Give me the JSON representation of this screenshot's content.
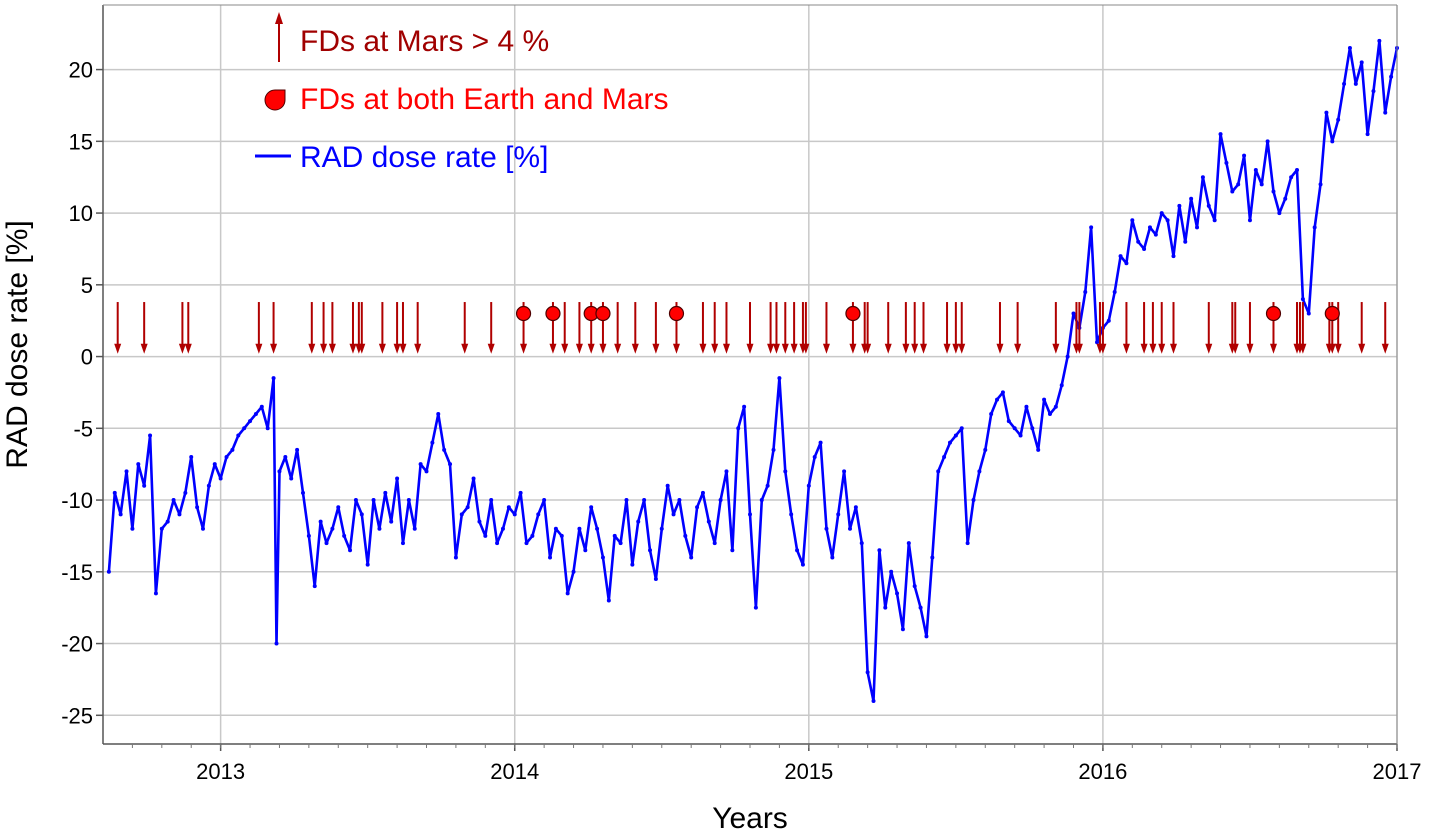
{
  "chart_data": {
    "type": "line",
    "title": "",
    "xlabel": "Years",
    "ylabel": "RAD dose rate [%]",
    "xlim": [
      2012.6,
      2017.0
    ],
    "ylim": [
      -27.0,
      24.5
    ],
    "x_ticks": [
      2013,
      2014,
      2015,
      2016,
      2017
    ],
    "x_tick_labels": [
      "2013",
      "2014",
      "2015",
      "2016",
      "2017"
    ],
    "y_ticks": [
      20,
      15,
      10,
      5,
      0,
      -5,
      -10,
      -15,
      -20,
      -25
    ],
    "y_tick_labels": [
      "20",
      "15",
      "10",
      "5",
      "0",
      "-5",
      "-10",
      "-15",
      "-20",
      "-25"
    ],
    "grid": true,
    "legend_position": "top-left",
    "legend": [
      {
        "label": "FDs at Mars > 4 %",
        "marker": "arrow",
        "color": "#b00000"
      },
      {
        "label": "FDs at both Earth and Mars",
        "marker": "circle",
        "color": "#ff0000"
      },
      {
        "label": "RAD dose rate [%]",
        "marker": "line",
        "color": "#0000ff"
      }
    ],
    "colors": {
      "dose": "#0000ff",
      "arrow": "#b00000",
      "text_arrow": "#a00000",
      "dot": "#ff0000",
      "grid": "#c8c8c8"
    },
    "series": [
      {
        "name": "RAD dose rate [%]",
        "x": [
          2012.62,
          2012.64,
          2012.66,
          2012.68,
          2012.7,
          2012.72,
          2012.74,
          2012.76,
          2012.78,
          2012.8,
          2012.82,
          2012.84,
          2012.86,
          2012.88,
          2012.9,
          2012.92,
          2012.94,
          2012.96,
          2012.98,
          2013.0,
          2013.02,
          2013.04,
          2013.06,
          2013.08,
          2013.1,
          2013.12,
          2013.14,
          2013.16,
          2013.18,
          2013.19,
          2013.2,
          2013.22,
          2013.24,
          2013.26,
          2013.28,
          2013.3,
          2013.32,
          2013.34,
          2013.36,
          2013.38,
          2013.4,
          2013.42,
          2013.44,
          2013.46,
          2013.48,
          2013.5,
          2013.52,
          2013.54,
          2013.56,
          2013.58,
          2013.6,
          2013.62,
          2013.64,
          2013.66,
          2013.68,
          2013.7,
          2013.72,
          2013.74,
          2013.76,
          2013.78,
          2013.8,
          2013.82,
          2013.84,
          2013.86,
          2013.88,
          2013.9,
          2013.92,
          2013.94,
          2013.96,
          2013.98,
          2014.0,
          2014.02,
          2014.04,
          2014.06,
          2014.08,
          2014.1,
          2014.12,
          2014.14,
          2014.16,
          2014.18,
          2014.2,
          2014.22,
          2014.24,
          2014.26,
          2014.28,
          2014.3,
          2014.32,
          2014.34,
          2014.36,
          2014.38,
          2014.4,
          2014.42,
          2014.44,
          2014.46,
          2014.48,
          2014.5,
          2014.52,
          2014.54,
          2014.56,
          2014.58,
          2014.6,
          2014.62,
          2014.64,
          2014.66,
          2014.68,
          2014.7,
          2014.72,
          2014.74,
          2014.76,
          2014.78,
          2014.8,
          2014.82,
          2014.84,
          2014.86,
          2014.88,
          2014.9,
          2014.92,
          2014.94,
          2014.96,
          2014.98,
          2015.0,
          2015.02,
          2015.04,
          2015.06,
          2015.08,
          2015.1,
          2015.12,
          2015.14,
          2015.16,
          2015.18,
          2015.2,
          2015.22,
          2015.24,
          2015.26,
          2015.28,
          2015.3,
          2015.32,
          2015.34,
          2015.36,
          2015.38,
          2015.4,
          2015.42,
          2015.44,
          2015.46,
          2015.48,
          2015.5,
          2015.52,
          2015.54,
          2015.56,
          2015.58,
          2015.6,
          2015.62,
          2015.64,
          2015.66,
          2015.68,
          2015.7,
          2015.72,
          2015.74,
          2015.76,
          2015.78,
          2015.8,
          2015.82,
          2015.84,
          2015.86,
          2015.88,
          2015.9,
          2015.92,
          2015.94,
          2015.96,
          2015.98,
          2016.0,
          2016.02,
          2016.04,
          2016.06,
          2016.08,
          2016.1,
          2016.12,
          2016.14,
          2016.16,
          2016.18,
          2016.2,
          2016.22,
          2016.24,
          2016.26,
          2016.28,
          2016.3,
          2016.32,
          2016.34,
          2016.36,
          2016.38,
          2016.4,
          2016.42,
          2016.44,
          2016.46,
          2016.48,
          2016.5,
          2016.52,
          2016.54,
          2016.56,
          2016.58,
          2016.6,
          2016.62,
          2016.64,
          2016.66,
          2016.68,
          2016.7,
          2016.72,
          2016.74,
          2016.76,
          2016.78,
          2016.8,
          2016.82,
          2016.84,
          2016.86,
          2016.88,
          2016.9,
          2016.92,
          2016.94,
          2016.96,
          2016.98,
          2017.0
        ],
        "y": [
          -15.0,
          -9.5,
          -11.0,
          -8.0,
          -12.0,
          -7.5,
          -9.0,
          -5.5,
          -16.5,
          -12.0,
          -11.5,
          -10.0,
          -11.0,
          -9.5,
          -7.0,
          -10.5,
          -12.0,
          -9.0,
          -7.5,
          -8.5,
          -7.0,
          -6.5,
          -5.5,
          -5.0,
          -4.5,
          -4.0,
          -3.5,
          -5.0,
          -1.5,
          -20.0,
          -8.0,
          -7.0,
          -8.5,
          -6.5,
          -9.5,
          -12.5,
          -16.0,
          -11.5,
          -13.0,
          -12.0,
          -10.5,
          -12.5,
          -13.5,
          -10.0,
          -11.0,
          -14.5,
          -10.0,
          -12.0,
          -9.5,
          -11.5,
          -8.5,
          -13.0,
          -10.0,
          -12.0,
          -7.5,
          -8.0,
          -6.0,
          -4.0,
          -6.5,
          -7.5,
          -14.0,
          -11.0,
          -10.5,
          -8.5,
          -11.5,
          -12.5,
          -10.0,
          -13.0,
          -12.0,
          -10.5,
          -11.0,
          -9.5,
          -13.0,
          -12.5,
          -11.0,
          -10.0,
          -14.0,
          -12.0,
          -12.5,
          -16.5,
          -15.0,
          -12.0,
          -13.5,
          -10.5,
          -12.0,
          -14.0,
          -17.0,
          -12.5,
          -13.0,
          -10.0,
          -14.5,
          -11.5,
          -10.0,
          -13.5,
          -15.5,
          -12.0,
          -9.0,
          -11.0,
          -10.0,
          -12.5,
          -14.0,
          -10.5,
          -9.5,
          -11.5,
          -13.0,
          -10.0,
          -8.0,
          -13.5,
          -5.0,
          -3.5,
          -11.0,
          -17.5,
          -10.0,
          -9.0,
          -6.5,
          -1.5,
          -8.0,
          -11.0,
          -13.5,
          -14.5,
          -9.0,
          -7.0,
          -6.0,
          -12.0,
          -14.0,
          -11.0,
          -8.0,
          -12.0,
          -10.5,
          -13.0,
          -22.0,
          -24.0,
          -13.5,
          -17.5,
          -15.0,
          -16.5,
          -19.0,
          -13.0,
          -16.0,
          -17.5,
          -19.5,
          -14.0,
          -8.0,
          -7.0,
          -6.0,
          -5.5,
          -5.0,
          -13.0,
          -10.0,
          -8.0,
          -6.5,
          -4.0,
          -3.0,
          -2.5,
          -4.5,
          -5.0,
          -5.5,
          -3.5,
          -5.0,
          -6.5,
          -3.0,
          -4.0,
          -3.5,
          -2.0,
          0.0,
          3.0,
          2.0,
          4.5,
          9.0,
          1.0,
          2.0,
          2.5,
          4.5,
          7.0,
          6.5,
          9.5,
          8.0,
          7.5,
          9.0,
          8.5,
          10.0,
          9.5,
          7.0,
          10.5,
          8.0,
          11.0,
          9.0,
          12.5,
          10.5,
          9.5,
          15.5,
          13.5,
          11.5,
          12.0,
          14.0,
          9.5,
          13.0,
          12.0,
          15.0,
          11.5,
          10.0,
          11.0,
          12.5,
          13.0,
          4.0,
          3.0,
          9.0,
          12.0,
          17.0,
          15.0,
          16.5,
          19.0,
          21.5,
          19.0,
          20.5,
          15.5,
          18.5,
          22.0,
          17.0,
          19.5,
          21.5
        ]
      }
    ],
    "fd_arrows_x": [
      2012.65,
      2012.74,
      2012.87,
      2012.89,
      2013.13,
      2013.18,
      2013.31,
      2013.35,
      2013.38,
      2013.45,
      2013.47,
      2013.48,
      2013.55,
      2013.6,
      2013.62,
      2013.67,
      2013.83,
      2013.92,
      2014.03,
      2014.13,
      2014.17,
      2014.22,
      2014.26,
      2014.3,
      2014.35,
      2014.41,
      2014.48,
      2014.55,
      2014.64,
      2014.68,
      2014.72,
      2014.8,
      2014.87,
      2014.89,
      2014.92,
      2014.95,
      2014.98,
      2014.99,
      2015.06,
      2015.15,
      2015.19,
      2015.2,
      2015.27,
      2015.33,
      2015.36,
      2015.39,
      2015.47,
      2015.5,
      2015.52,
      2015.65,
      2015.71,
      2015.84,
      2015.91,
      2015.92,
      2015.99,
      2016.0,
      2016.08,
      2016.14,
      2016.17,
      2016.2,
      2016.24,
      2016.36,
      2016.44,
      2016.45,
      2016.5,
      2016.58,
      2016.66,
      2016.67,
      2016.68,
      2016.77,
      2016.78,
      2016.8,
      2016.88,
      2016.96
    ],
    "fd_both_x": [
      2014.03,
      2014.13,
      2014.26,
      2014.3,
      2014.55,
      2015.15,
      2016.58,
      2016.78
    ],
    "fd_arrow_top": 3.8,
    "fd_arrow_bottom": 0.2,
    "fd_dot_y": 3.0
  }
}
